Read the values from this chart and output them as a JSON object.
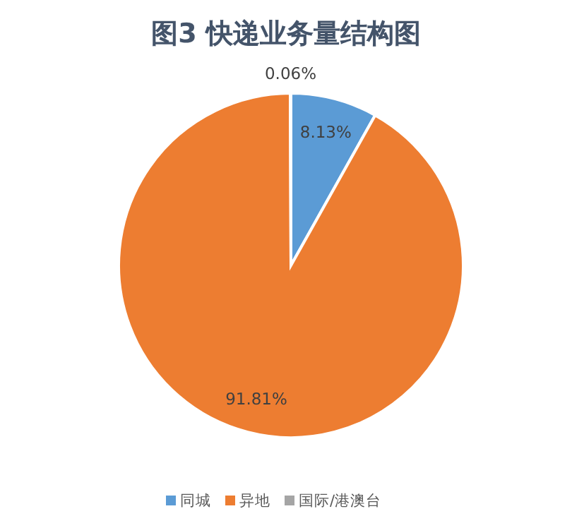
{
  "chart_data": {
    "type": "pie",
    "title": "图3 快递业务量结构图",
    "categories": [
      "同城",
      "异地",
      "国际/港澳台"
    ],
    "values": [
      8.13,
      91.81,
      0.06
    ],
    "colors": [
      "#5b9bd5",
      "#ed7d31",
      "#a5a5a5"
    ],
    "value_labels": [
      "8.13%",
      "91.81%",
      "0.06%"
    ],
    "legend": "bottom"
  }
}
